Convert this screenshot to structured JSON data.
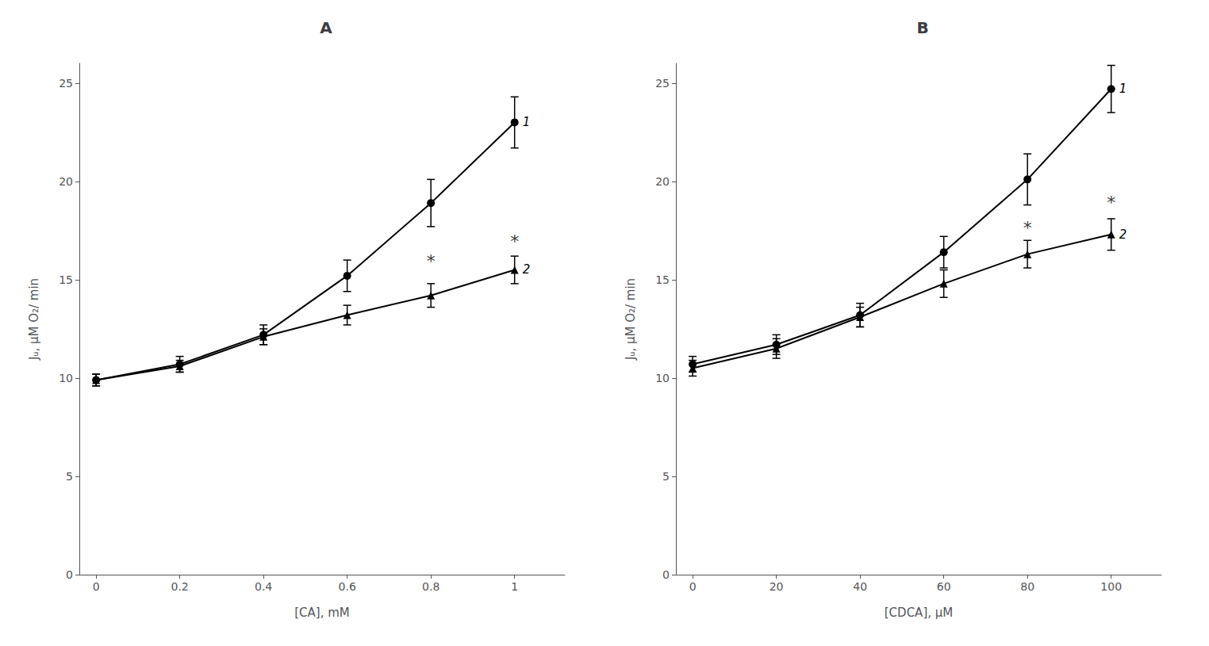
{
  "chart_data": [
    {
      "type": "line",
      "title": "A",
      "x_label": "[CA], mM",
      "y_label": "Jᵤ, μM O₂/ min",
      "x": [
        0,
        0.2,
        0.4,
        0.6,
        0.8,
        1.0
      ],
      "series": [
        {
          "name": "1",
          "color": "#000000",
          "marker": "circle",
          "values": [
            9.9,
            10.7,
            12.2,
            15.2,
            18.9,
            23.0
          ],
          "errors": [
            0.3,
            0.4,
            0.5,
            0.8,
            1.2,
            1.3
          ]
        },
        {
          "name": "2",
          "color": "#000000",
          "marker": "triangle",
          "values": [
            9.9,
            10.6,
            12.1,
            13.2,
            14.2,
            15.5
          ],
          "errors": [
            0.3,
            0.3,
            0.4,
            0.5,
            0.6,
            0.7
          ]
        }
      ],
      "annotations": [
        {
          "text": "*",
          "x": 0.8,
          "y": 15.5
        },
        {
          "text": "*",
          "x": 1.0,
          "y": 16.5
        }
      ],
      "xlim": [
        -0.04,
        1.12
      ],
      "xticks": [
        0,
        0.2,
        0.4,
        0.6,
        0.8,
        1
      ],
      "ylim": [
        0,
        26
      ],
      "yticks": [
        0,
        5,
        10,
        15,
        20,
        25
      ],
      "grid": false
    },
    {
      "type": "line",
      "title": "B",
      "x_label": "[CDCA], μM",
      "y_label": "Jᵤ, μM O₂/ min",
      "x": [
        0,
        20,
        40,
        60,
        80,
        100
      ],
      "series": [
        {
          "name": "1",
          "color": "#000000",
          "marker": "circle",
          "values": [
            10.7,
            11.7,
            13.2,
            16.4,
            20.1,
            24.7
          ],
          "errors": [
            0.4,
            0.5,
            0.6,
            0.8,
            1.3,
            1.2
          ]
        },
        {
          "name": "2",
          "color": "#000000",
          "marker": "triangle",
          "values": [
            10.5,
            11.5,
            13.1,
            14.8,
            16.3,
            17.3
          ],
          "errors": [
            0.4,
            0.5,
            0.5,
            0.7,
            0.7,
            0.8
          ]
        }
      ],
      "annotations": [
        {
          "text": "*",
          "x": 80,
          "y": 17.2
        },
        {
          "text": "*",
          "x": 100,
          "y": 18.5
        }
      ],
      "xlim": [
        -4,
        112
      ],
      "xticks": [
        0,
        20,
        40,
        60,
        80,
        100
      ],
      "ylim": [
        0,
        26
      ],
      "yticks": [
        0,
        5,
        10,
        15,
        20,
        25
      ],
      "grid": false
    }
  ]
}
